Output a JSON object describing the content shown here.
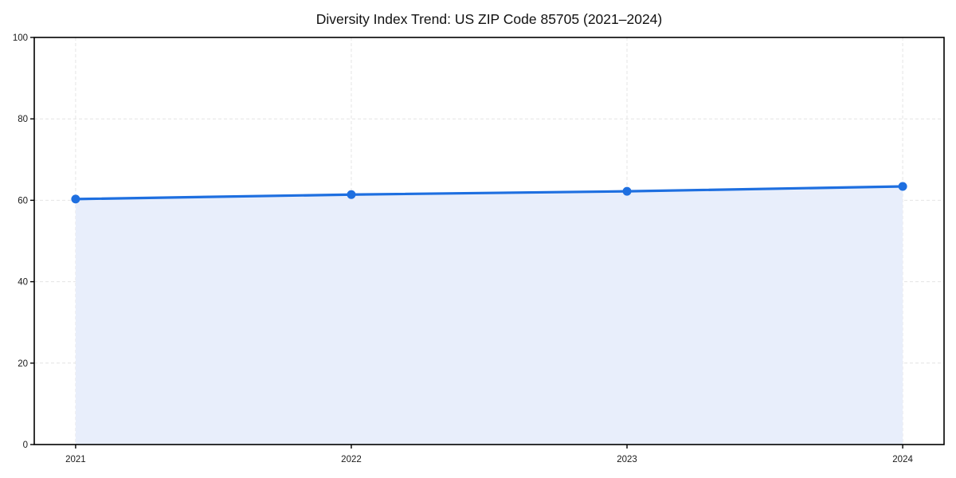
{
  "chart_data": {
    "type": "line",
    "title": "Diversity Index Trend: US ZIP Code 85705 (2021–2024)",
    "xlabel": "",
    "ylabel": "",
    "x": [
      2021,
      2022,
      2023,
      2024
    ],
    "xticklabels": [
      "2021",
      "2022",
      "2023",
      "2024"
    ],
    "series": [
      {
        "name": "Diversity Index",
        "values": [
          60.3,
          61.4,
          62.2,
          63.4
        ]
      }
    ],
    "ylim": [
      0,
      100
    ],
    "yticks": [
      0,
      20,
      40,
      60,
      80,
      100
    ],
    "grid": true,
    "grid_style": "dashed",
    "legend_position": "none",
    "area_fill": true,
    "marker": "circle",
    "colors": {
      "line": "#1e6fe0",
      "marker": "#1e6fe0",
      "fill": "#e8eefb",
      "grid": "#e4e4e4",
      "spine": "#000000",
      "tick_label": "#1a1a1a",
      "title": "#111111",
      "background": "#ffffff"
    }
  }
}
